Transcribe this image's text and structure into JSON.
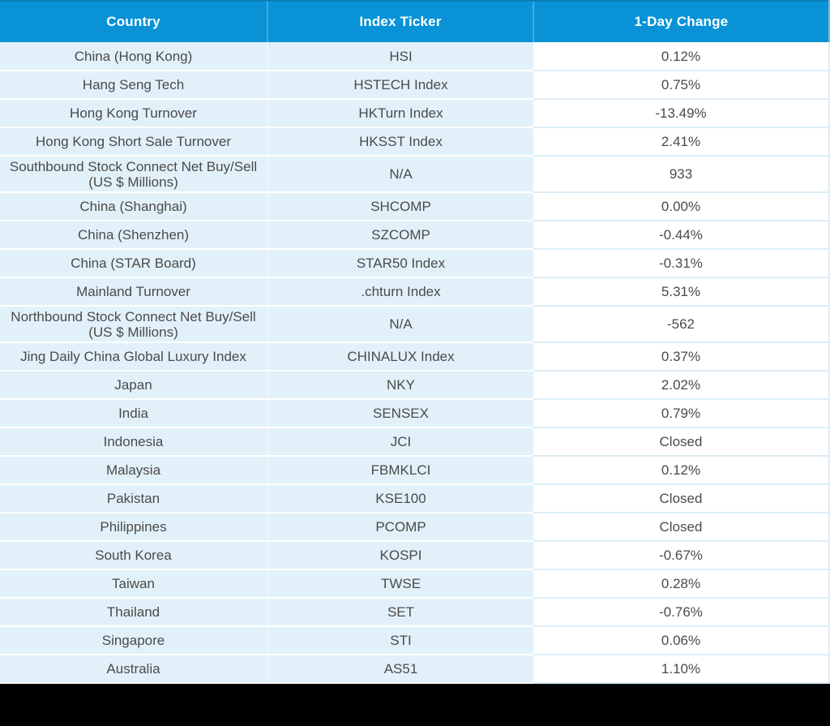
{
  "chart_data": {
    "type": "table",
    "columns": [
      "Country",
      "Index Ticker",
      "1-Day Change"
    ],
    "rows": [
      {
        "country": "China (Hong Kong)",
        "ticker": "HSI",
        "change": "0.12%"
      },
      {
        "country": "Hang Seng Tech",
        "ticker": "HSTECH Index",
        "change": "0.75%"
      },
      {
        "country": "Hong Kong Turnover",
        "ticker": "HKTurn Index",
        "change": "-13.49%"
      },
      {
        "country": "Hong Kong Short Sale Turnover",
        "ticker": "HKSST Index",
        "change": "2.41%"
      },
      {
        "country": "Southbound Stock Connect Net Buy/Sell (US $ Millions)",
        "ticker": "N/A",
        "change": "933"
      },
      {
        "country": "China (Shanghai)",
        "ticker": "SHCOMP",
        "change": "0.00%"
      },
      {
        "country": "China (Shenzhen)",
        "ticker": "SZCOMP",
        "change": "-0.44%"
      },
      {
        "country": "China (STAR Board)",
        "ticker": "STAR50 Index",
        "change": "-0.31%"
      },
      {
        "country": "Mainland Turnover",
        "ticker": ".chturn Index",
        "change": "5.31%"
      },
      {
        "country": "Northbound Stock Connect Net Buy/Sell (US $ Millions)",
        "ticker": "N/A",
        "change": "-562"
      },
      {
        "country": "Jing Daily China Global Luxury Index",
        "ticker": "CHINALUX Index",
        "change": "0.37%"
      },
      {
        "country": "Japan",
        "ticker": "NKY",
        "change": "2.02%"
      },
      {
        "country": "India",
        "ticker": "SENSEX",
        "change": "0.79%"
      },
      {
        "country": "Indonesia",
        "ticker": "JCI",
        "change": "Closed"
      },
      {
        "country": "Malaysia",
        "ticker": "FBMKLCI",
        "change": "0.12%"
      },
      {
        "country": "Pakistan",
        "ticker": "KSE100",
        "change": "Closed"
      },
      {
        "country": "Philippines",
        "ticker": "PCOMP",
        "change": "Closed"
      },
      {
        "country": "South Korea",
        "ticker": "KOSPI",
        "change": "-0.67%"
      },
      {
        "country": "Taiwan",
        "ticker": "TWSE",
        "change": "0.28%"
      },
      {
        "country": "Thailand",
        "ticker": "SET",
        "change": "-0.76%"
      },
      {
        "country": "Singapore",
        "ticker": "STI",
        "change": "0.06%"
      },
      {
        "country": "Australia",
        "ticker": "AS51",
        "change": "1.10%"
      }
    ]
  },
  "colors": {
    "header_bg": "#0993d6",
    "header_text": "#ffffff",
    "row_tint_bg": "#e2f1f9",
    "row_white_bg": "#ffffff",
    "separator_on_tint": "#ffffff",
    "separator_on_white": "#dcedf7",
    "body_text": "#4a4a4a",
    "bottom_bar": "#000000"
  }
}
